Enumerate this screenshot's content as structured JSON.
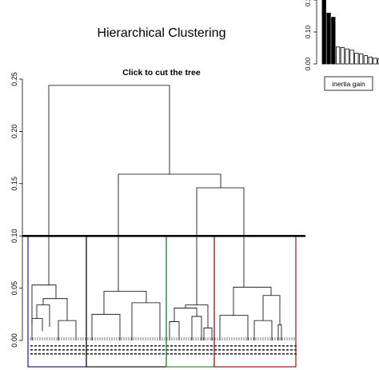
{
  "chart_data": [
    {
      "type": "dendrogram",
      "title": "Hierarchical Clustering",
      "subtitle": "Click to cut the tree",
      "ylim": [
        0,
        0.25
      ],
      "yticks": [
        "0.00",
        "0.05",
        "0.10",
        "0.15",
        "0.20",
        "0.25"
      ],
      "cut_height": 0.1,
      "grid": false,
      "merges": [
        {
          "height": 0.244
        },
        {
          "height": 0.159
        },
        {
          "height": 0.146
        },
        {
          "height": 0.053
        },
        {
          "height": 0.047
        },
        {
          "height": 0.051
        },
        {
          "height": 0.034
        },
        {
          "height": 0.031
        },
        {
          "height": 0.043
        }
      ],
      "clusters": [
        {
          "id": 1,
          "color": "#1f1f7a"
        },
        {
          "id": 2,
          "color": "#111111"
        },
        {
          "id": 3,
          "color": "#2e8b2e"
        },
        {
          "id": 4,
          "color": "#8b1a1a"
        }
      ]
    },
    {
      "type": "bar",
      "legend": "inertia gain",
      "yticks": [
        "0.00",
        "0.10",
        "0.20"
      ],
      "ylim": [
        0,
        0.25
      ],
      "values": [
        0.244,
        0.159,
        0.146,
        0.053,
        0.051,
        0.047,
        0.043,
        0.034,
        0.031,
        0.026,
        0.021,
        0.018,
        0.016,
        0.014,
        0.012
      ]
    }
  ]
}
